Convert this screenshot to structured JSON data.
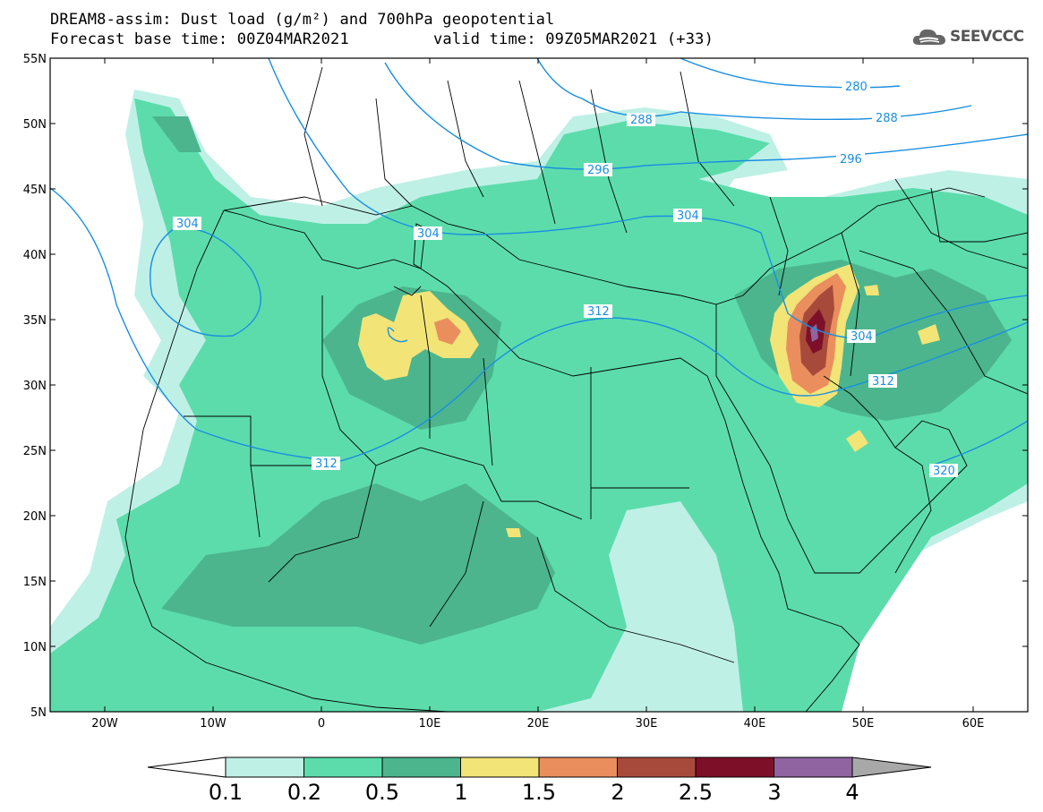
{
  "title": {
    "line1": "DREAM8-assim: Dust load (g/m²) and 700hPa geopotential",
    "line2_base": "Forecast base time: 00Z04MAR2021",
    "line2_valid": "valid time: 09Z05MAR2021 (+33)"
  },
  "logo": {
    "text": "SEEVCCC",
    "icon": "cloud-icon"
  },
  "map": {
    "lat_labels": [
      "55N",
      "50N",
      "45N",
      "40N",
      "35N",
      "30N",
      "25N",
      "20N",
      "15N",
      "10N",
      "5N"
    ],
    "lon_labels": [
      "20W",
      "10W",
      "0",
      "10E",
      "20E",
      "30E",
      "40E",
      "50E",
      "60E"
    ],
    "contour_labels": [
      "280",
      "288",
      "288",
      "296",
      "296",
      "304",
      "304",
      "304",
      "304",
      "312",
      "312",
      "312",
      "320"
    ]
  },
  "colorbar": {
    "labels": [
      "0.1",
      "0.2",
      "0.5",
      "1",
      "1.5",
      "2",
      "2.5",
      "3",
      "4"
    ],
    "colors": [
      "#bff0e6",
      "#5cdcab",
      "#4cb58d",
      "#f2e477",
      "#ea8e5e",
      "#a84a3b",
      "#7d1028",
      "#8f64a0"
    ]
  },
  "colors": {
    "contour": "#1a8fe0",
    "border": "#000000",
    "background": "#ffffff"
  }
}
